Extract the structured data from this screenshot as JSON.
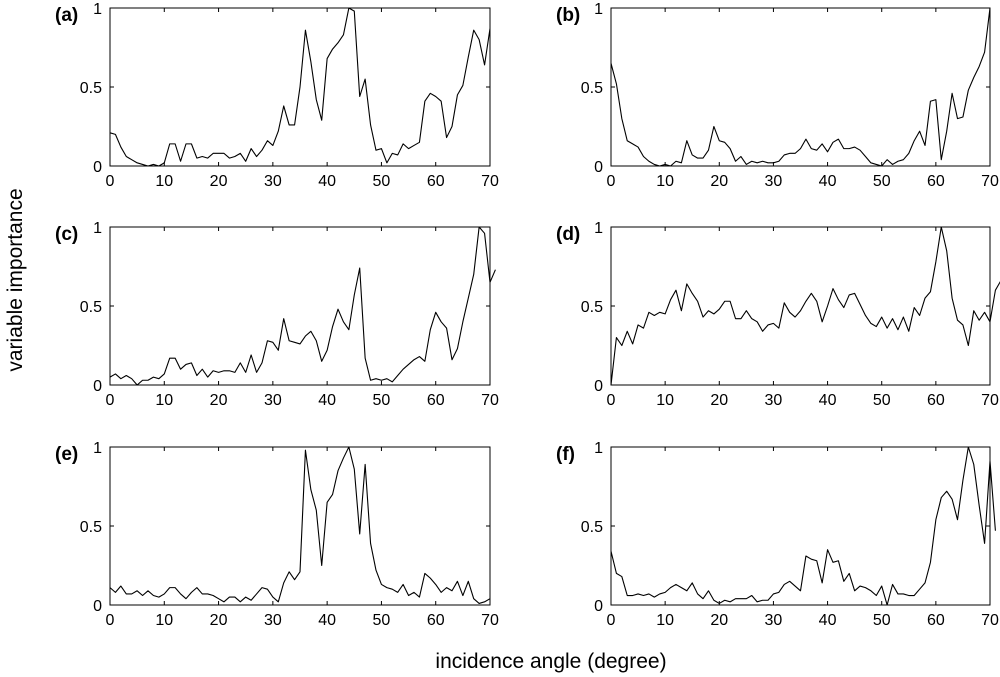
{
  "figure": {
    "xlabel": "incidence angle (degree)",
    "ylabel": "variable importance"
  },
  "chart_data": [
    {
      "type": "line",
      "panel": "(a)",
      "xlim": [
        0,
        70
      ],
      "ylim": [
        0,
        1
      ],
      "xticks": [
        0,
        10,
        20,
        30,
        40,
        50,
        60,
        70
      ],
      "xtick_labels": [
        "0",
        "10",
        "20",
        "30",
        "40",
        "50",
        "60",
        "70"
      ],
      "yticks": [
        0,
        0.5,
        1
      ],
      "ytick_labels": [
        "0",
        "0.5",
        "1"
      ],
      "x_start": 0,
      "x_step": 1,
      "values": [
        0.21,
        0.2,
        0.12,
        0.06,
        0.04,
        0.02,
        0.01,
        0.0,
        0.01,
        0.0,
        0.02,
        0.14,
        0.14,
        0.03,
        0.14,
        0.14,
        0.05,
        0.06,
        0.05,
        0.08,
        0.08,
        0.08,
        0.05,
        0.06,
        0.08,
        0.03,
        0.11,
        0.06,
        0.1,
        0.16,
        0.13,
        0.22,
        0.38,
        0.26,
        0.26,
        0.5,
        0.86,
        0.66,
        0.42,
        0.29,
        0.68,
        0.74,
        0.78,
        0.83,
        1.0,
        0.98,
        0.44,
        0.55,
        0.26,
        0.1,
        0.11,
        0.02,
        0.08,
        0.07,
        0.14,
        0.11,
        0.13,
        0.15,
        0.41,
        0.46,
        0.44,
        0.41,
        0.18,
        0.25,
        0.45,
        0.51,
        0.69,
        0.86,
        0.8,
        0.64,
        0.87
      ]
    },
    {
      "type": "line",
      "panel": "(b)",
      "xlim": [
        0,
        70
      ],
      "ylim": [
        0,
        1
      ],
      "xticks": [
        0,
        10,
        20,
        30,
        40,
        50,
        60,
        70
      ],
      "xtick_labels": [
        "0",
        "10",
        "20",
        "30",
        "40",
        "50",
        "60",
        "70"
      ],
      "yticks": [
        0,
        0.5,
        1
      ],
      "ytick_labels": [
        "0",
        "0.5",
        "1"
      ],
      "x_start": 0,
      "x_step": 1,
      "values": [
        0.65,
        0.52,
        0.3,
        0.16,
        0.14,
        0.12,
        0.06,
        0.03,
        0.01,
        0.0,
        0.01,
        0.0,
        0.03,
        0.02,
        0.16,
        0.07,
        0.05,
        0.05,
        0.1,
        0.25,
        0.16,
        0.15,
        0.11,
        0.03,
        0.06,
        0.01,
        0.03,
        0.02,
        0.03,
        0.02,
        0.02,
        0.03,
        0.07,
        0.08,
        0.08,
        0.11,
        0.17,
        0.11,
        0.1,
        0.14,
        0.09,
        0.15,
        0.17,
        0.11,
        0.11,
        0.12,
        0.1,
        0.06,
        0.02,
        0.01,
        0.0,
        0.04,
        0.01,
        0.03,
        0.04,
        0.08,
        0.16,
        0.22,
        0.13,
        0.41,
        0.42,
        0.04,
        0.22,
        0.46,
        0.3,
        0.31,
        0.48,
        0.56,
        0.63,
        0.72,
        1.0
      ]
    },
    {
      "type": "line",
      "panel": "(c)",
      "xlim": [
        0,
        70
      ],
      "ylim": [
        0,
        1
      ],
      "xticks": [
        0,
        10,
        20,
        30,
        40,
        50,
        60,
        70
      ],
      "xtick_labels": [
        "0",
        "10",
        "20",
        "30",
        "40",
        "50",
        "60",
        "70"
      ],
      "yticks": [
        0,
        0.5,
        1
      ],
      "ytick_labels": [
        "0",
        "0.5",
        "1"
      ],
      "x_start": 0,
      "x_step": 1,
      "values": [
        0.05,
        0.07,
        0.04,
        0.06,
        0.04,
        0.0,
        0.03,
        0.03,
        0.05,
        0.04,
        0.07,
        0.17,
        0.17,
        0.1,
        0.13,
        0.14,
        0.06,
        0.1,
        0.05,
        0.09,
        0.08,
        0.09,
        0.09,
        0.08,
        0.14,
        0.08,
        0.19,
        0.08,
        0.14,
        0.28,
        0.27,
        0.22,
        0.42,
        0.28,
        0.27,
        0.26,
        0.31,
        0.34,
        0.28,
        0.15,
        0.22,
        0.37,
        0.48,
        0.4,
        0.35,
        0.57,
        0.74,
        0.17,
        0.03,
        0.04,
        0.03,
        0.04,
        0.02,
        0.06,
        0.1,
        0.13,
        0.16,
        0.18,
        0.15,
        0.35,
        0.46,
        0.4,
        0.36,
        0.16,
        0.23,
        0.4,
        0.55,
        0.7,
        1.0,
        0.96,
        0.65,
        0.73
      ]
    },
    {
      "type": "line",
      "panel": "(d)",
      "xlim": [
        0,
        70
      ],
      "ylim": [
        0,
        1
      ],
      "xticks": [
        0,
        10,
        20,
        30,
        40,
        50,
        60,
        70
      ],
      "xtick_labels": [
        "0",
        "10",
        "20",
        "30",
        "40",
        "50",
        "60",
        "70"
      ],
      "yticks": [
        0,
        0.5,
        1
      ],
      "ytick_labels": [
        "0",
        "0.5",
        "1"
      ],
      "x_start": 0,
      "x_step": 1,
      "values": [
        0.0,
        0.3,
        0.25,
        0.34,
        0.26,
        0.38,
        0.36,
        0.46,
        0.44,
        0.46,
        0.45,
        0.54,
        0.6,
        0.47,
        0.64,
        0.58,
        0.53,
        0.43,
        0.47,
        0.45,
        0.48,
        0.53,
        0.53,
        0.42,
        0.42,
        0.47,
        0.42,
        0.4,
        0.34,
        0.38,
        0.39,
        0.36,
        0.52,
        0.46,
        0.43,
        0.47,
        0.53,
        0.58,
        0.53,
        0.4,
        0.5,
        0.61,
        0.54,
        0.49,
        0.57,
        0.58,
        0.51,
        0.44,
        0.39,
        0.37,
        0.43,
        0.36,
        0.42,
        0.35,
        0.43,
        0.34,
        0.49,
        0.44,
        0.55,
        0.59,
        0.78,
        1.0,
        0.85,
        0.55,
        0.41,
        0.38,
        0.25,
        0.47,
        0.41,
        0.46,
        0.4,
        0.6,
        0.66
      ]
    },
    {
      "type": "line",
      "panel": "(e)",
      "xlim": [
        0,
        70
      ],
      "ylim": [
        0,
        1
      ],
      "xticks": [
        0,
        10,
        20,
        30,
        40,
        50,
        60,
        70
      ],
      "xtick_labels": [
        "0",
        "10",
        "20",
        "30",
        "40",
        "50",
        "60",
        "70"
      ],
      "yticks": [
        0,
        0.5,
        1
      ],
      "ytick_labels": [
        "0",
        "0.5",
        "1"
      ],
      "x_start": 0,
      "x_step": 1,
      "values": [
        0.11,
        0.08,
        0.12,
        0.07,
        0.07,
        0.09,
        0.06,
        0.09,
        0.06,
        0.05,
        0.07,
        0.11,
        0.11,
        0.07,
        0.04,
        0.08,
        0.11,
        0.07,
        0.07,
        0.06,
        0.04,
        0.02,
        0.05,
        0.05,
        0.02,
        0.05,
        0.03,
        0.07,
        0.11,
        0.1,
        0.05,
        0.02,
        0.14,
        0.21,
        0.16,
        0.21,
        0.98,
        0.73,
        0.6,
        0.25,
        0.65,
        0.7,
        0.85,
        0.93,
        1.0,
        0.86,
        0.45,
        0.89,
        0.39,
        0.22,
        0.13,
        0.11,
        0.1,
        0.08,
        0.13,
        0.06,
        0.08,
        0.05,
        0.2,
        0.17,
        0.13,
        0.08,
        0.11,
        0.09,
        0.15,
        0.06,
        0.15,
        0.04,
        0.01,
        0.02,
        0.04
      ]
    },
    {
      "type": "line",
      "panel": "(f)",
      "xlim": [
        0,
        70
      ],
      "ylim": [
        0,
        1
      ],
      "xticks": [
        0,
        10,
        20,
        30,
        40,
        50,
        60,
        70
      ],
      "xtick_labels": [
        "0",
        "10",
        "20",
        "30",
        "40",
        "50",
        "60",
        "70"
      ],
      "yticks": [
        0,
        0.5,
        1
      ],
      "ytick_labels": [
        "0",
        "0.5",
        "1"
      ],
      "x_start": 0,
      "x_step": 1,
      "values": [
        0.34,
        0.2,
        0.18,
        0.06,
        0.06,
        0.07,
        0.06,
        0.07,
        0.05,
        0.07,
        0.08,
        0.11,
        0.13,
        0.11,
        0.09,
        0.14,
        0.07,
        0.04,
        0.09,
        0.03,
        0.01,
        0.03,
        0.02,
        0.04,
        0.04,
        0.04,
        0.06,
        0.02,
        0.03,
        0.03,
        0.07,
        0.08,
        0.13,
        0.15,
        0.12,
        0.09,
        0.31,
        0.29,
        0.28,
        0.14,
        0.35,
        0.27,
        0.28,
        0.15,
        0.2,
        0.09,
        0.12,
        0.11,
        0.09,
        0.06,
        0.12,
        0.0,
        0.13,
        0.07,
        0.07,
        0.06,
        0.06,
        0.1,
        0.14,
        0.27,
        0.54,
        0.68,
        0.72,
        0.67,
        0.54,
        0.79,
        1.0,
        0.89,
        0.63,
        0.39,
        0.91,
        0.47
      ]
    }
  ]
}
